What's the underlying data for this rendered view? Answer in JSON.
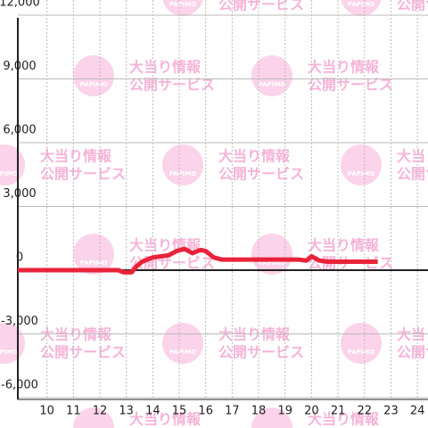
{
  "chart_data": {
    "type": "line",
    "x": [
      8.9,
      12.7,
      12.9,
      13.2,
      13.4,
      13.6,
      14.0,
      14.3,
      14.6,
      14.9,
      15.2,
      15.5,
      15.8,
      16.0,
      16.3,
      16.6,
      17.5,
      18.5,
      19.5,
      19.8,
      20.0,
      20.3,
      20.6,
      21.5,
      22.5
    ],
    "series": [
      {
        "color": "#e8233a",
        "values": [
          0,
          0,
          -100,
          -100,
          200,
          400,
          600,
          650,
          700,
          900,
          1000,
          800,
          950,
          900,
          600,
          500,
          500,
          500,
          500,
          450,
          650,
          450,
          400,
          400,
          400
        ]
      }
    ],
    "xlim": [
      8.9,
      24.4
    ],
    "xticks": [
      10,
      11,
      12,
      13,
      14,
      15,
      16,
      17,
      18,
      19,
      20,
      21,
      22,
      23,
      24
    ],
    "ylim": [
      -6000,
      12000
    ],
    "yticks": [
      {
        "value": -6000,
        "label": "-6,000"
      },
      {
        "value": -3000,
        "label": "-3,000"
      },
      0,
      {
        "value": 3000,
        "label": "3,000"
      },
      {
        "value": 6000,
        "label": "6,000"
      },
      {
        "value": 9000,
        "label": "9,000"
      },
      {
        "value": 12000,
        "label": "12,000"
      }
    ],
    "grid": true
  },
  "watermark": {
    "brand": "PAPIMO",
    "line1": "大当り情報",
    "line2": "公開サービス"
  }
}
